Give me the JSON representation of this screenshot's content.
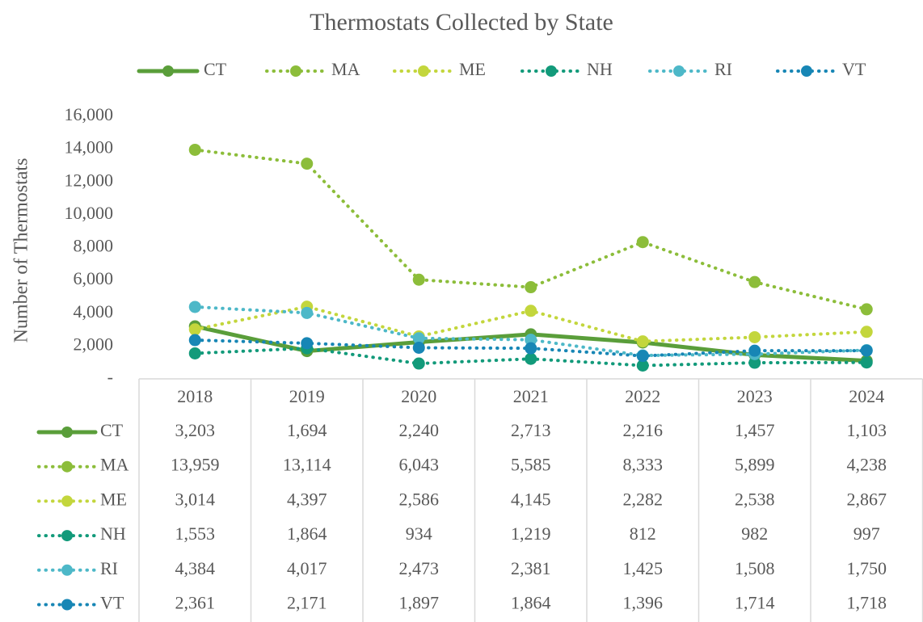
{
  "chart_data": {
    "type": "line",
    "title": "Thermostats Collected by State",
    "y_label": "Number of Thermostats",
    "categories": [
      "2018",
      "2019",
      "2020",
      "2021",
      "2022",
      "2023",
      "2024"
    ],
    "ylim": [
      0,
      16000
    ],
    "yticks": [
      {
        "value": 0,
        "label": "-"
      },
      {
        "value": 2000,
        "label": "2,000"
      },
      {
        "value": 4000,
        "label": "4,000"
      },
      {
        "value": 6000,
        "label": "6,000"
      },
      {
        "value": 8000,
        "label": "8,000"
      },
      {
        "value": 10000,
        "label": "10,000"
      },
      {
        "value": 12000,
        "label": "12,000"
      },
      {
        "value": 14000,
        "label": "14,000"
      },
      {
        "value": 16000,
        "label": "16,000"
      }
    ],
    "legend": "top",
    "data_table": true,
    "series": [
      {
        "name": "CT",
        "color": "#5a9e3a",
        "line_style": "solid",
        "values": [
          3203,
          1694,
          2240,
          2713,
          2216,
          1457,
          1103
        ],
        "value_labels": [
          "3,203",
          "1,694",
          "2,240",
          "2,713",
          "2,216",
          "1,457",
          "1,103"
        ]
      },
      {
        "name": "MA",
        "color": "#8cbd3a",
        "line_style": "dotted",
        "values": [
          13959,
          13114,
          6043,
          5585,
          8333,
          5899,
          4238
        ],
        "value_labels": [
          "13,959",
          "13,114",
          "6,043",
          "5,585",
          "8,333",
          "5,899",
          "4,238"
        ]
      },
      {
        "name": "ME",
        "color": "#c3d63c",
        "line_style": "dotted",
        "values": [
          3014,
          4397,
          2586,
          4145,
          2282,
          2538,
          2867
        ],
        "value_labels": [
          "3,014",
          "4,397",
          "2,586",
          "4,145",
          "2,282",
          "2,538",
          "2,867"
        ]
      },
      {
        "name": "NH",
        "color": "#129a7a",
        "line_style": "dotted",
        "values": [
          1553,
          1864,
          934,
          1219,
          812,
          982,
          997
        ],
        "value_labels": [
          "1,553",
          "1,864",
          "934",
          "1,219",
          "812",
          "982",
          "997"
        ]
      },
      {
        "name": "RI",
        "color": "#4db8c8",
        "line_style": "dotted",
        "values": [
          4384,
          4017,
          2473,
          2381,
          1425,
          1508,
          1750
        ],
        "value_labels": [
          "4,384",
          "4,017",
          "2,473",
          "2,381",
          "1,425",
          "1,508",
          "1,750"
        ]
      },
      {
        "name": "VT",
        "color": "#1786b5",
        "line_style": "dotted",
        "values": [
          2361,
          2171,
          1897,
          1864,
          1396,
          1714,
          1718
        ],
        "value_labels": [
          "2,361",
          "2,171",
          "1,897",
          "1,864",
          "1,396",
          "1,714",
          "1,718"
        ]
      }
    ]
  }
}
